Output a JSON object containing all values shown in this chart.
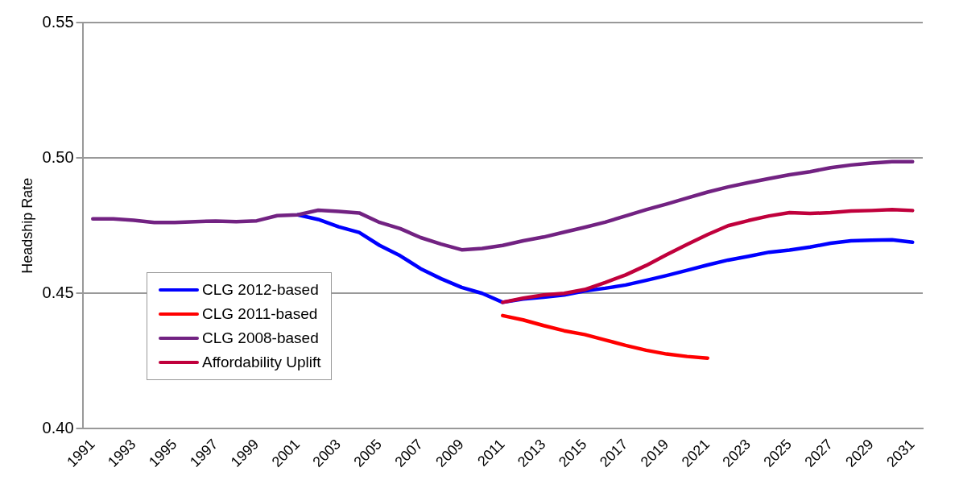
{
  "chart_data": {
    "type": "line",
    "ylabel": "Headship Rate",
    "categories": [
      "1991",
      null,
      "1993",
      null,
      "1995",
      null,
      "1997",
      null,
      "1999",
      null,
      "2001",
      null,
      "2003",
      null,
      "2005",
      null,
      "2007",
      null,
      "2009",
      null,
      "2011",
      null,
      "2013",
      null,
      "2015",
      null,
      "2017",
      null,
      "2019",
      null,
      "2021",
      null,
      "2023",
      null,
      "2025",
      null,
      "2027",
      null,
      "2029",
      null,
      "2031"
    ],
    "series": [
      {
        "name": "CLG 2012-based",
        "color": "#0000ff",
        "values": [
          null,
          null,
          null,
          null,
          null,
          null,
          null,
          null,
          null,
          null,
          0.479,
          0.4773,
          0.4746,
          0.4725,
          0.4677,
          0.4639,
          0.4591,
          0.4554,
          0.4522,
          0.45,
          0.4467,
          0.4479,
          0.4486,
          0.4494,
          0.4509,
          0.4519,
          0.4531,
          0.4548,
          0.4566,
          0.4585,
          0.4605,
          0.4623,
          0.4637,
          0.4652,
          0.466,
          0.4671,
          0.4685,
          0.4694,
          0.4696,
          0.4698,
          0.4689
        ]
      },
      {
        "name": "CLG 2011-based",
        "color": "#ff0000",
        "values": [
          null,
          null,
          null,
          null,
          null,
          null,
          null,
          null,
          null,
          null,
          null,
          null,
          null,
          null,
          null,
          null,
          null,
          null,
          null,
          null,
          0.4418,
          0.4402,
          0.4381,
          0.4362,
          0.4348,
          0.4328,
          0.4308,
          0.429,
          0.4276,
          0.4267,
          0.4261,
          null,
          null,
          null,
          null,
          null,
          null,
          null,
          null,
          null,
          null
        ]
      },
      {
        "name": "CLG 2008-based",
        "color": "#722282",
        "values": [
          0.4775,
          0.4775,
          0.477,
          0.4762,
          0.4762,
          0.4765,
          0.4767,
          0.4765,
          0.4768,
          0.4787,
          0.479,
          0.4807,
          0.4803,
          0.4797,
          0.4762,
          0.4739,
          0.4706,
          0.4682,
          0.4661,
          0.4666,
          0.4677,
          0.4694,
          0.4708,
          0.4726,
          0.4744,
          0.4763,
          0.4786,
          0.4809,
          0.483,
          0.4852,
          0.4874,
          0.4893,
          0.4909,
          0.4924,
          0.4938,
          0.4949,
          0.4964,
          0.4974,
          0.4981,
          0.4986,
          0.4986
        ]
      },
      {
        "name": "Affordability Uplift",
        "color": "#c0003c",
        "values": [
          null,
          null,
          null,
          null,
          null,
          null,
          null,
          null,
          null,
          null,
          null,
          null,
          null,
          null,
          null,
          null,
          null,
          null,
          null,
          null,
          0.4467,
          0.4482,
          0.4494,
          0.45,
          0.4514,
          0.454,
          0.4568,
          0.4603,
          0.4643,
          0.4681,
          0.4717,
          0.475,
          0.4769,
          0.4786,
          0.4798,
          0.4795,
          0.4798,
          0.4804,
          0.4806,
          0.4809,
          0.4806
        ]
      }
    ],
    "ylim": [
      0.4,
      0.55
    ],
    "yticks": [
      {
        "value": 0.4,
        "label": "0.40"
      },
      {
        "value": 0.45,
        "label": "0.45"
      },
      {
        "value": 0.5,
        "label": "0.50"
      },
      {
        "value": 0.55,
        "label": "0.55"
      }
    ],
    "grid": "y",
    "legend": "bottom left",
    "marker": "none",
    "line_style": "solid"
  }
}
